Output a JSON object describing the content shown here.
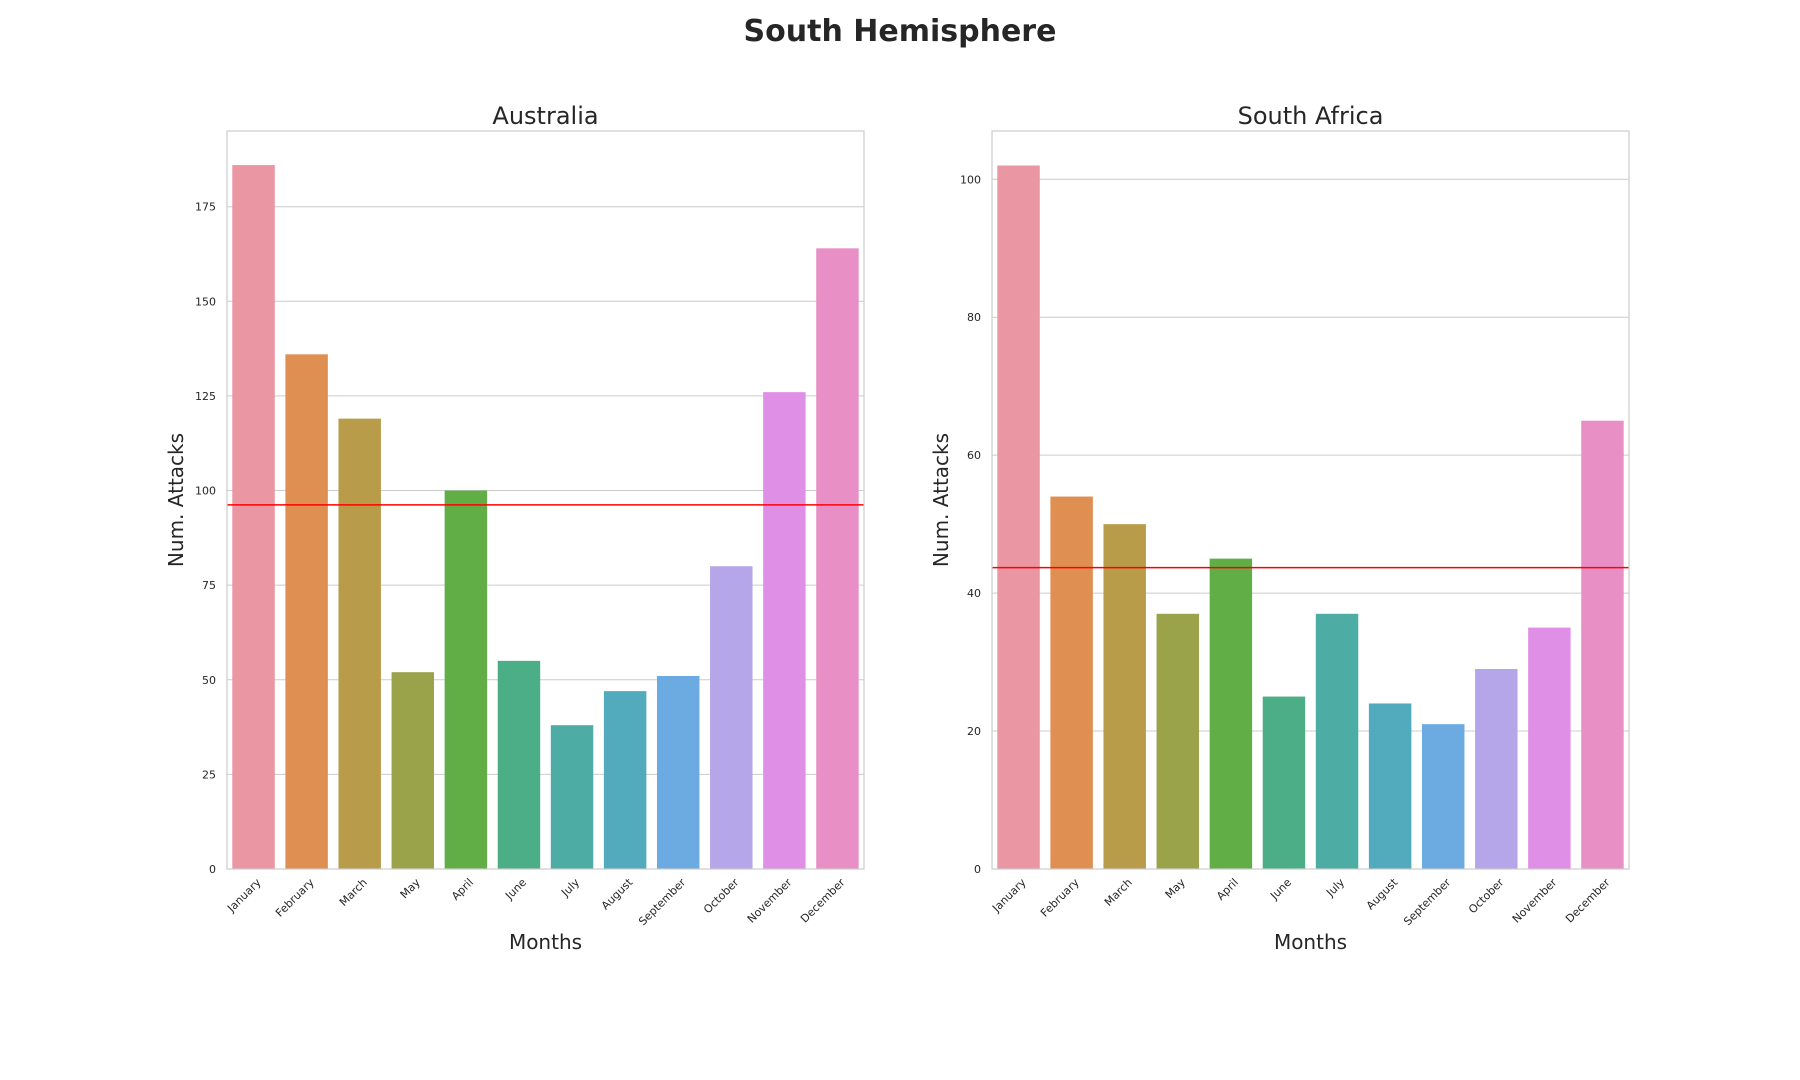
{
  "figure": {
    "title": "South Hemisphere"
  },
  "chart_data": [
    {
      "type": "bar",
      "title": "Australia",
      "xlabel": "Months",
      "ylabel": "Num. Attacks",
      "categories": [
        "January",
        "February",
        "March",
        "May",
        "April",
        "June",
        "July",
        "August",
        "September",
        "October",
        "November",
        "December"
      ],
      "values": [
        186,
        136,
        119,
        52,
        100,
        55,
        38,
        47,
        51,
        80,
        126,
        164
      ],
      "ylim": [
        0,
        195
      ],
      "yticks": [
        0,
        25,
        50,
        75,
        100,
        125,
        150,
        175
      ],
      "mean_line": 96.2,
      "mean_line_color": "#ff0000",
      "grid": "horizontal",
      "colors": [
        "#ea96a3",
        "#e08f53",
        "#b89c49",
        "#9aa34a",
        "#61ae47",
        "#4bae87",
        "#4daca4",
        "#52abbc",
        "#6babe1",
        "#b5a6ea",
        "#df8fe6",
        "#e890c6"
      ]
    },
    {
      "type": "bar",
      "title": "South Africa",
      "xlabel": "Months",
      "ylabel": "Num. Attacks",
      "categories": [
        "January",
        "February",
        "March",
        "May",
        "April",
        "June",
        "July",
        "August",
        "September",
        "October",
        "November",
        "December"
      ],
      "values": [
        102,
        54,
        50,
        37,
        45,
        25,
        37,
        24,
        21,
        29,
        35,
        65
      ],
      "ylim": [
        0,
        107
      ],
      "yticks": [
        0,
        20,
        40,
        60,
        80,
        100
      ],
      "mean_line": 43.7,
      "mean_line_color": "#ff0000",
      "grid": "horizontal",
      "colors": [
        "#ea96a3",
        "#e08f53",
        "#b89c49",
        "#9aa34a",
        "#61ae47",
        "#4bae87",
        "#4daca4",
        "#52abbc",
        "#6babe1",
        "#b5a6ea",
        "#df8fe6",
        "#e890c6"
      ]
    }
  ]
}
